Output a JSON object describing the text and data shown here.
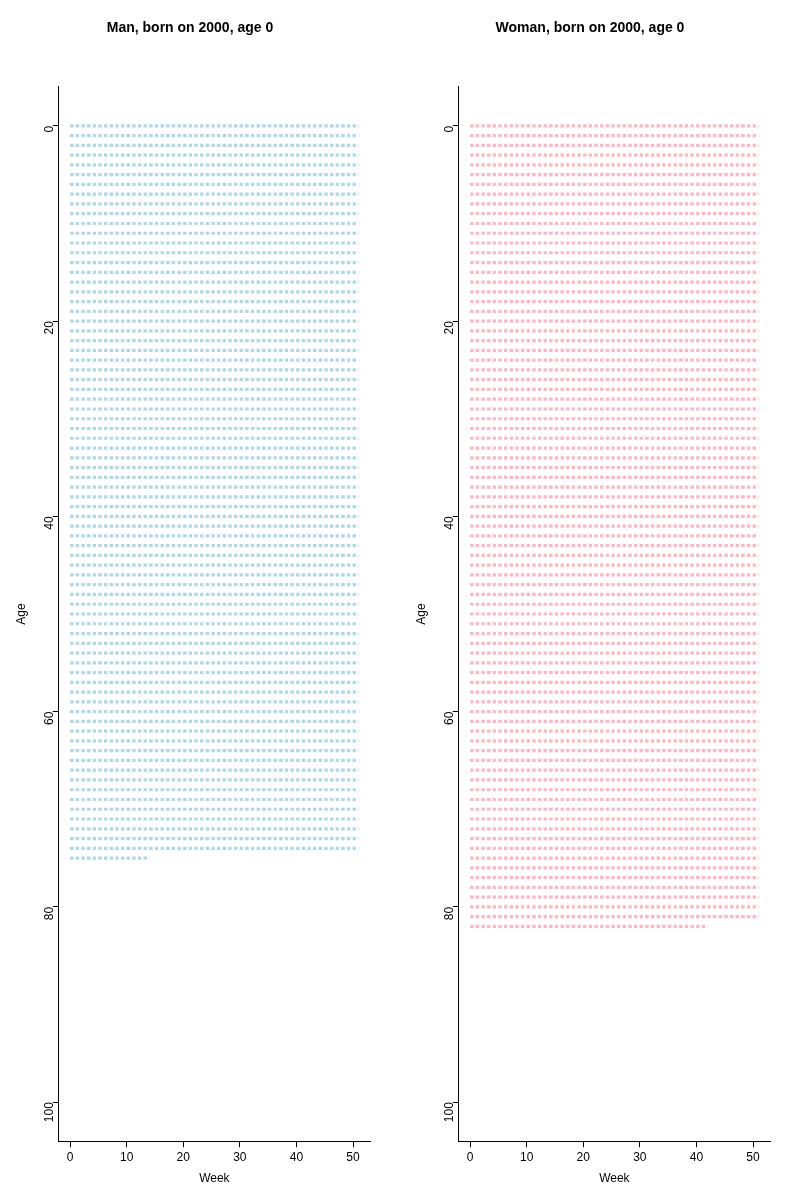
{
  "chart_data": [
    {
      "type": "line",
      "title": "Man, born on 2000, age 0",
      "xlabel": "Week",
      "ylabel": "Age",
      "color": "#add8e6",
      "line_style": "dotted",
      "grid": false,
      "legend": false,
      "xlim": [
        -2,
        53
      ],
      "xticks": [
        0,
        10,
        20,
        30,
        40,
        50
      ],
      "ylim": [
        104,
        -4
      ],
      "yticks": [
        0,
        20,
        40,
        60,
        80,
        100
      ],
      "series": [
        {
          "x": [
            0,
            51
          ],
          "values": [
            0,
            0
          ]
        },
        {
          "x": [
            0,
            51
          ],
          "values": [
            1,
            1
          ]
        },
        {
          "x": [
            0,
            51
          ],
          "values": [
            2,
            2
          ]
        },
        {
          "x": [
            0,
            51
          ],
          "values": [
            3,
            3
          ]
        },
        {
          "x": [
            0,
            51
          ],
          "values": [
            4,
            4
          ]
        },
        {
          "x": [
            0,
            51
          ],
          "values": [
            5,
            5
          ]
        },
        {
          "x": [
            0,
            51
          ],
          "values": [
            6,
            6
          ]
        },
        {
          "x": [
            0,
            51
          ],
          "values": [
            7,
            7
          ]
        },
        {
          "x": [
            0,
            51
          ],
          "values": [
            8,
            8
          ]
        },
        {
          "x": [
            0,
            51
          ],
          "values": [
            9,
            9
          ]
        },
        {
          "x": [
            0,
            51
          ],
          "values": [
            10,
            10
          ]
        },
        {
          "x": [
            0,
            51
          ],
          "values": [
            11,
            11
          ]
        },
        {
          "x": [
            0,
            51
          ],
          "values": [
            12,
            12
          ]
        },
        {
          "x": [
            0,
            51
          ],
          "values": [
            13,
            13
          ]
        },
        {
          "x": [
            0,
            51
          ],
          "values": [
            14,
            14
          ]
        },
        {
          "x": [
            0,
            51
          ],
          "values": [
            15,
            15
          ]
        },
        {
          "x": [
            0,
            51
          ],
          "values": [
            16,
            16
          ]
        },
        {
          "x": [
            0,
            51
          ],
          "values": [
            17,
            17
          ]
        },
        {
          "x": [
            0,
            51
          ],
          "values": [
            18,
            18
          ]
        },
        {
          "x": [
            0,
            51
          ],
          "values": [
            19,
            19
          ]
        },
        {
          "x": [
            0,
            51
          ],
          "values": [
            20,
            20
          ]
        },
        {
          "x": [
            0,
            51
          ],
          "values": [
            21,
            21
          ]
        },
        {
          "x": [
            0,
            51
          ],
          "values": [
            22,
            22
          ]
        },
        {
          "x": [
            0,
            51
          ],
          "values": [
            23,
            23
          ]
        },
        {
          "x": [
            0,
            51
          ],
          "values": [
            24,
            24
          ]
        },
        {
          "x": [
            0,
            51
          ],
          "values": [
            25,
            25
          ]
        },
        {
          "x": [
            0,
            51
          ],
          "values": [
            26,
            26
          ]
        },
        {
          "x": [
            0,
            51
          ],
          "values": [
            27,
            27
          ]
        },
        {
          "x": [
            0,
            51
          ],
          "values": [
            28,
            28
          ]
        },
        {
          "x": [
            0,
            51
          ],
          "values": [
            29,
            29
          ]
        },
        {
          "x": [
            0,
            51
          ],
          "values": [
            30,
            30
          ]
        },
        {
          "x": [
            0,
            51
          ],
          "values": [
            31,
            31
          ]
        },
        {
          "x": [
            0,
            51
          ],
          "values": [
            32,
            32
          ]
        },
        {
          "x": [
            0,
            51
          ],
          "values": [
            33,
            33
          ]
        },
        {
          "x": [
            0,
            51
          ],
          "values": [
            34,
            34
          ]
        },
        {
          "x": [
            0,
            51
          ],
          "values": [
            35,
            35
          ]
        },
        {
          "x": [
            0,
            51
          ],
          "values": [
            36,
            36
          ]
        },
        {
          "x": [
            0,
            51
          ],
          "values": [
            37,
            37
          ]
        },
        {
          "x": [
            0,
            51
          ],
          "values": [
            38,
            38
          ]
        },
        {
          "x": [
            0,
            51
          ],
          "values": [
            39,
            39
          ]
        },
        {
          "x": [
            0,
            51
          ],
          "values": [
            40,
            40
          ]
        },
        {
          "x": [
            0,
            51
          ],
          "values": [
            41,
            41
          ]
        },
        {
          "x": [
            0,
            51
          ],
          "values": [
            42,
            42
          ]
        },
        {
          "x": [
            0,
            51
          ],
          "values": [
            43,
            43
          ]
        },
        {
          "x": [
            0,
            51
          ],
          "values": [
            44,
            44
          ]
        },
        {
          "x": [
            0,
            51
          ],
          "values": [
            45,
            45
          ]
        },
        {
          "x": [
            0,
            51
          ],
          "values": [
            46,
            46
          ]
        },
        {
          "x": [
            0,
            51
          ],
          "values": [
            47,
            47
          ]
        },
        {
          "x": [
            0,
            51
          ],
          "values": [
            48,
            48
          ]
        },
        {
          "x": [
            0,
            51
          ],
          "values": [
            49,
            49
          ]
        },
        {
          "x": [
            0,
            51
          ],
          "values": [
            50,
            50
          ]
        },
        {
          "x": [
            0,
            51
          ],
          "values": [
            51,
            51
          ]
        },
        {
          "x": [
            0,
            51
          ],
          "values": [
            52,
            52
          ]
        },
        {
          "x": [
            0,
            51
          ],
          "values": [
            53,
            53
          ]
        },
        {
          "x": [
            0,
            51
          ],
          "values": [
            54,
            54
          ]
        },
        {
          "x": [
            0,
            51
          ],
          "values": [
            55,
            55
          ]
        },
        {
          "x": [
            0,
            51
          ],
          "values": [
            56,
            56
          ]
        },
        {
          "x": [
            0,
            51
          ],
          "values": [
            57,
            57
          ]
        },
        {
          "x": [
            0,
            51
          ],
          "values": [
            58,
            58
          ]
        },
        {
          "x": [
            0,
            51
          ],
          "values": [
            59,
            59
          ]
        },
        {
          "x": [
            0,
            51
          ],
          "values": [
            60,
            60
          ]
        },
        {
          "x": [
            0,
            51
          ],
          "values": [
            61,
            61
          ]
        },
        {
          "x": [
            0,
            51
          ],
          "values": [
            62,
            62
          ]
        },
        {
          "x": [
            0,
            51
          ],
          "values": [
            63,
            63
          ]
        },
        {
          "x": [
            0,
            51
          ],
          "values": [
            64,
            64
          ]
        },
        {
          "x": [
            0,
            51
          ],
          "values": [
            65,
            65
          ]
        },
        {
          "x": [
            0,
            51
          ],
          "values": [
            66,
            66
          ]
        },
        {
          "x": [
            0,
            51
          ],
          "values": [
            67,
            67
          ]
        },
        {
          "x": [
            0,
            51
          ],
          "values": [
            68,
            68
          ]
        },
        {
          "x": [
            0,
            51
          ],
          "values": [
            69,
            69
          ]
        },
        {
          "x": [
            0,
            51
          ],
          "values": [
            70,
            70
          ]
        },
        {
          "x": [
            0,
            51
          ],
          "values": [
            71,
            71
          ]
        },
        {
          "x": [
            0,
            51
          ],
          "values": [
            72,
            72
          ]
        },
        {
          "x": [
            0,
            51
          ],
          "values": [
            73,
            73
          ]
        },
        {
          "x": [
            0,
            51
          ],
          "values": [
            74,
            74
          ]
        },
        {
          "x": [
            0,
            14
          ],
          "values": [
            75,
            75
          ]
        }
      ]
    },
    {
      "type": "line",
      "title": "Woman, born on 2000, age 0",
      "xlabel": "Week",
      "ylabel": "Age",
      "color": "#ffb6c1",
      "line_style": "dotted",
      "grid": false,
      "legend": false,
      "xlim": [
        -2,
        53
      ],
      "xticks": [
        0,
        10,
        20,
        30,
        40,
        50
      ],
      "ylim": [
        104,
        -4
      ],
      "yticks": [
        0,
        20,
        40,
        60,
        80,
        100
      ],
      "series": [
        {
          "x": [
            0,
            51
          ],
          "values": [
            0,
            0
          ]
        },
        {
          "x": [
            0,
            51
          ],
          "values": [
            1,
            1
          ]
        },
        {
          "x": [
            0,
            51
          ],
          "values": [
            2,
            2
          ]
        },
        {
          "x": [
            0,
            51
          ],
          "values": [
            3,
            3
          ]
        },
        {
          "x": [
            0,
            51
          ],
          "values": [
            4,
            4
          ]
        },
        {
          "x": [
            0,
            51
          ],
          "values": [
            5,
            5
          ]
        },
        {
          "x": [
            0,
            51
          ],
          "values": [
            6,
            6
          ]
        },
        {
          "x": [
            0,
            51
          ],
          "values": [
            7,
            7
          ]
        },
        {
          "x": [
            0,
            51
          ],
          "values": [
            8,
            8
          ]
        },
        {
          "x": [
            0,
            51
          ],
          "values": [
            9,
            9
          ]
        },
        {
          "x": [
            0,
            51
          ],
          "values": [
            10,
            10
          ]
        },
        {
          "x": [
            0,
            51
          ],
          "values": [
            11,
            11
          ]
        },
        {
          "x": [
            0,
            51
          ],
          "values": [
            12,
            12
          ]
        },
        {
          "x": [
            0,
            51
          ],
          "values": [
            13,
            13
          ]
        },
        {
          "x": [
            0,
            51
          ],
          "values": [
            14,
            14
          ]
        },
        {
          "x": [
            0,
            51
          ],
          "values": [
            15,
            15
          ]
        },
        {
          "x": [
            0,
            51
          ],
          "values": [
            16,
            16
          ]
        },
        {
          "x": [
            0,
            51
          ],
          "values": [
            17,
            17
          ]
        },
        {
          "x": [
            0,
            51
          ],
          "values": [
            18,
            18
          ]
        },
        {
          "x": [
            0,
            51
          ],
          "values": [
            19,
            19
          ]
        },
        {
          "x": [
            0,
            51
          ],
          "values": [
            20,
            20
          ]
        },
        {
          "x": [
            0,
            51
          ],
          "values": [
            21,
            21
          ]
        },
        {
          "x": [
            0,
            51
          ],
          "values": [
            22,
            22
          ]
        },
        {
          "x": [
            0,
            51
          ],
          "values": [
            23,
            23
          ]
        },
        {
          "x": [
            0,
            51
          ],
          "values": [
            24,
            24
          ]
        },
        {
          "x": [
            0,
            51
          ],
          "values": [
            25,
            25
          ]
        },
        {
          "x": [
            0,
            51
          ],
          "values": [
            26,
            26
          ]
        },
        {
          "x": [
            0,
            51
          ],
          "values": [
            27,
            27
          ]
        },
        {
          "x": [
            0,
            51
          ],
          "values": [
            28,
            28
          ]
        },
        {
          "x": [
            0,
            51
          ],
          "values": [
            29,
            29
          ]
        },
        {
          "x": [
            0,
            51
          ],
          "values": [
            30,
            30
          ]
        },
        {
          "x": [
            0,
            51
          ],
          "values": [
            31,
            31
          ]
        },
        {
          "x": [
            0,
            51
          ],
          "values": [
            32,
            32
          ]
        },
        {
          "x": [
            0,
            51
          ],
          "values": [
            33,
            33
          ]
        },
        {
          "x": [
            0,
            51
          ],
          "values": [
            34,
            34
          ]
        },
        {
          "x": [
            0,
            51
          ],
          "values": [
            35,
            35
          ]
        },
        {
          "x": [
            0,
            51
          ],
          "values": [
            36,
            36
          ]
        },
        {
          "x": [
            0,
            51
          ],
          "values": [
            37,
            37
          ]
        },
        {
          "x": [
            0,
            51
          ],
          "values": [
            38,
            38
          ]
        },
        {
          "x": [
            0,
            51
          ],
          "values": [
            39,
            39
          ]
        },
        {
          "x": [
            0,
            51
          ],
          "values": [
            40,
            40
          ]
        },
        {
          "x": [
            0,
            51
          ],
          "values": [
            41,
            41
          ]
        },
        {
          "x": [
            0,
            51
          ],
          "values": [
            42,
            42
          ]
        },
        {
          "x": [
            0,
            51
          ],
          "values": [
            43,
            43
          ]
        },
        {
          "x": [
            0,
            51
          ],
          "values": [
            44,
            44
          ]
        },
        {
          "x": [
            0,
            51
          ],
          "values": [
            45,
            45
          ]
        },
        {
          "x": [
            0,
            51
          ],
          "values": [
            46,
            46
          ]
        },
        {
          "x": [
            0,
            51
          ],
          "values": [
            47,
            47
          ]
        },
        {
          "x": [
            0,
            51
          ],
          "values": [
            48,
            48
          ]
        },
        {
          "x": [
            0,
            51
          ],
          "values": [
            49,
            49
          ]
        },
        {
          "x": [
            0,
            51
          ],
          "values": [
            50,
            50
          ]
        },
        {
          "x": [
            0,
            51
          ],
          "values": [
            51,
            51
          ]
        },
        {
          "x": [
            0,
            51
          ],
          "values": [
            52,
            52
          ]
        },
        {
          "x": [
            0,
            51
          ],
          "values": [
            53,
            53
          ]
        },
        {
          "x": [
            0,
            51
          ],
          "values": [
            54,
            54
          ]
        },
        {
          "x": [
            0,
            51
          ],
          "values": [
            55,
            55
          ]
        },
        {
          "x": [
            0,
            51
          ],
          "values": [
            56,
            56
          ]
        },
        {
          "x": [
            0,
            51
          ],
          "values": [
            57,
            57
          ]
        },
        {
          "x": [
            0,
            51
          ],
          "values": [
            58,
            58
          ]
        },
        {
          "x": [
            0,
            51
          ],
          "values": [
            59,
            59
          ]
        },
        {
          "x": [
            0,
            51
          ],
          "values": [
            60,
            60
          ]
        },
        {
          "x": [
            0,
            51
          ],
          "values": [
            61,
            61
          ]
        },
        {
          "x": [
            0,
            51
          ],
          "values": [
            62,
            62
          ]
        },
        {
          "x": [
            0,
            51
          ],
          "values": [
            63,
            63
          ]
        },
        {
          "x": [
            0,
            51
          ],
          "values": [
            64,
            64
          ]
        },
        {
          "x": [
            0,
            51
          ],
          "values": [
            65,
            65
          ]
        },
        {
          "x": [
            0,
            51
          ],
          "values": [
            66,
            66
          ]
        },
        {
          "x": [
            0,
            51
          ],
          "values": [
            67,
            67
          ]
        },
        {
          "x": [
            0,
            51
          ],
          "values": [
            68,
            68
          ]
        },
        {
          "x": [
            0,
            51
          ],
          "values": [
            69,
            69
          ]
        },
        {
          "x": [
            0,
            51
          ],
          "values": [
            70,
            70
          ]
        },
        {
          "x": [
            0,
            51
          ],
          "values": [
            71,
            71
          ]
        },
        {
          "x": [
            0,
            51
          ],
          "values": [
            72,
            72
          ]
        },
        {
          "x": [
            0,
            51
          ],
          "values": [
            73,
            73
          ]
        },
        {
          "x": [
            0,
            51
          ],
          "values": [
            74,
            74
          ]
        },
        {
          "x": [
            0,
            51
          ],
          "values": [
            75,
            75
          ]
        },
        {
          "x": [
            0,
            51
          ],
          "values": [
            76,
            76
          ]
        },
        {
          "x": [
            0,
            51
          ],
          "values": [
            77,
            77
          ]
        },
        {
          "x": [
            0,
            51
          ],
          "values": [
            78,
            78
          ]
        },
        {
          "x": [
            0,
            51
          ],
          "values": [
            79,
            79
          ]
        },
        {
          "x": [
            0,
            51
          ],
          "values": [
            80,
            80
          ]
        },
        {
          "x": [
            0,
            51
          ],
          "values": [
            81,
            81
          ]
        },
        {
          "x": [
            0,
            42
          ],
          "values": [
            82,
            82
          ]
        }
      ]
    }
  ]
}
